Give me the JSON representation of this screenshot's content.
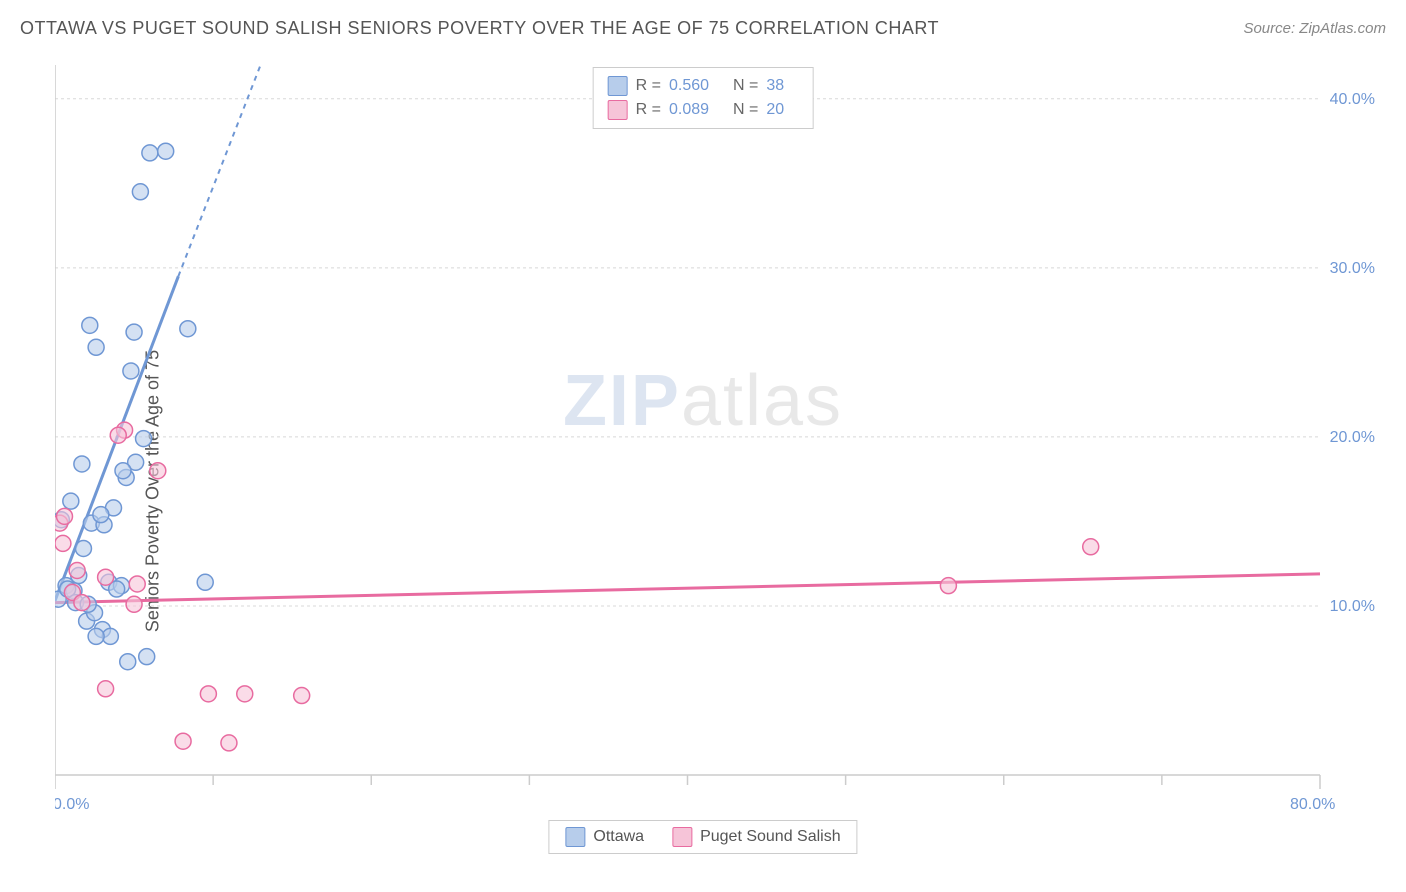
{
  "title": "OTTAWA VS PUGET SOUND SALISH SENIORS POVERTY OVER THE AGE OF 75 CORRELATION CHART",
  "source": "Source: ZipAtlas.com",
  "y_axis_label": "Seniors Poverty Over the Age of 75",
  "watermark": {
    "zip": "ZIP",
    "atlas": "atlas"
  },
  "chart": {
    "type": "scatter",
    "xlim": [
      0,
      80
    ],
    "ylim": [
      0,
      42
    ],
    "x_ticks_major": [
      0,
      80
    ],
    "x_ticks_minor": [
      10,
      20,
      30,
      40,
      50,
      60,
      70
    ],
    "y_ticks_labeled": [
      10,
      20,
      30,
      40
    ],
    "y_tick_labels": [
      "10.0%",
      "20.0%",
      "30.0%",
      "40.0%"
    ],
    "x_tick_labels": [
      "0.0%",
      "80.0%"
    ],
    "background_color": "#ffffff",
    "grid_color": "#d8d8d8",
    "axis_color": "#cccccc",
    "label_color": "#6f97d4",
    "marker_radius": 8,
    "marker_stroke_width": 1.5,
    "marker_fill_opacity": 0.25
  },
  "series": [
    {
      "name": "Ottawa",
      "color": "#6f97d4",
      "fill": "#b7cdeb",
      "R": "0.560",
      "N": "38",
      "trend": {
        "x1": 0,
        "y1": 10.3,
        "x2_solid": 7.8,
        "y2_solid": 29.5,
        "x2_dash": 13.0,
        "y2_dash": 42.0
      },
      "points": [
        [
          0.2,
          10.4
        ],
        [
          0.7,
          11.2
        ],
        [
          1.2,
          10.9
        ],
        [
          1.5,
          11.8
        ],
        [
          2.0,
          9.1
        ],
        [
          2.5,
          9.6
        ],
        [
          1.8,
          13.4
        ],
        [
          2.3,
          14.9
        ],
        [
          3.1,
          14.8
        ],
        [
          3.7,
          15.8
        ],
        [
          4.5,
          17.6
        ],
        [
          5.1,
          18.5
        ],
        [
          4.3,
          18.0
        ],
        [
          5.6,
          19.9
        ],
        [
          4.8,
          23.9
        ],
        [
          5.0,
          26.2
        ],
        [
          2.6,
          25.3
        ],
        [
          2.2,
          26.6
        ],
        [
          6.0,
          36.8
        ],
        [
          7.0,
          36.9
        ],
        [
          5.4,
          34.5
        ],
        [
          8.4,
          26.4
        ],
        [
          9.5,
          11.4
        ],
        [
          3.4,
          11.4
        ],
        [
          4.2,
          11.2
        ],
        [
          3.0,
          8.6
        ],
        [
          3.5,
          8.2
        ],
        [
          2.6,
          8.2
        ],
        [
          5.8,
          7.0
        ],
        [
          4.6,
          6.7
        ],
        [
          0.4,
          15.1
        ],
        [
          1.0,
          16.2
        ],
        [
          0.8,
          11.0
        ],
        [
          3.9,
          11.0
        ],
        [
          1.3,
          10.2
        ],
        [
          2.1,
          10.1
        ],
        [
          1.7,
          18.4
        ],
        [
          2.9,
          15.4
        ]
      ]
    },
    {
      "name": "Puget Sound Salish",
      "color": "#e86ba0",
      "fill": "#f6c4d8",
      "R": "0.089",
      "N": "20",
      "trend": {
        "x1": 0,
        "y1": 10.2,
        "x2_solid": 80,
        "y2_solid": 11.9,
        "x2_dash": 80,
        "y2_dash": 11.9
      },
      "points": [
        [
          0.3,
          14.9
        ],
        [
          0.6,
          15.3
        ],
        [
          0.5,
          13.7
        ],
        [
          1.4,
          12.1
        ],
        [
          1.1,
          10.8
        ],
        [
          1.7,
          10.2
        ],
        [
          3.2,
          11.7
        ],
        [
          5.0,
          10.1
        ],
        [
          5.2,
          11.3
        ],
        [
          6.5,
          18.0
        ],
        [
          4.4,
          20.4
        ],
        [
          4.0,
          20.1
        ],
        [
          3.2,
          5.1
        ],
        [
          9.7,
          4.8
        ],
        [
          12.0,
          4.8
        ],
        [
          15.6,
          4.7
        ],
        [
          8.1,
          2.0
        ],
        [
          11.0,
          1.9
        ],
        [
          56.5,
          11.2
        ],
        [
          65.5,
          13.5
        ]
      ]
    }
  ],
  "stats_legend": {
    "R_label": "R =",
    "N_label": "N ="
  },
  "series_legend": [
    {
      "label": "Ottawa",
      "color": "#6f97d4",
      "fill": "#b7cdeb"
    },
    {
      "label": "Puget Sound Salish",
      "color": "#e86ba0",
      "fill": "#f6c4d8"
    }
  ]
}
